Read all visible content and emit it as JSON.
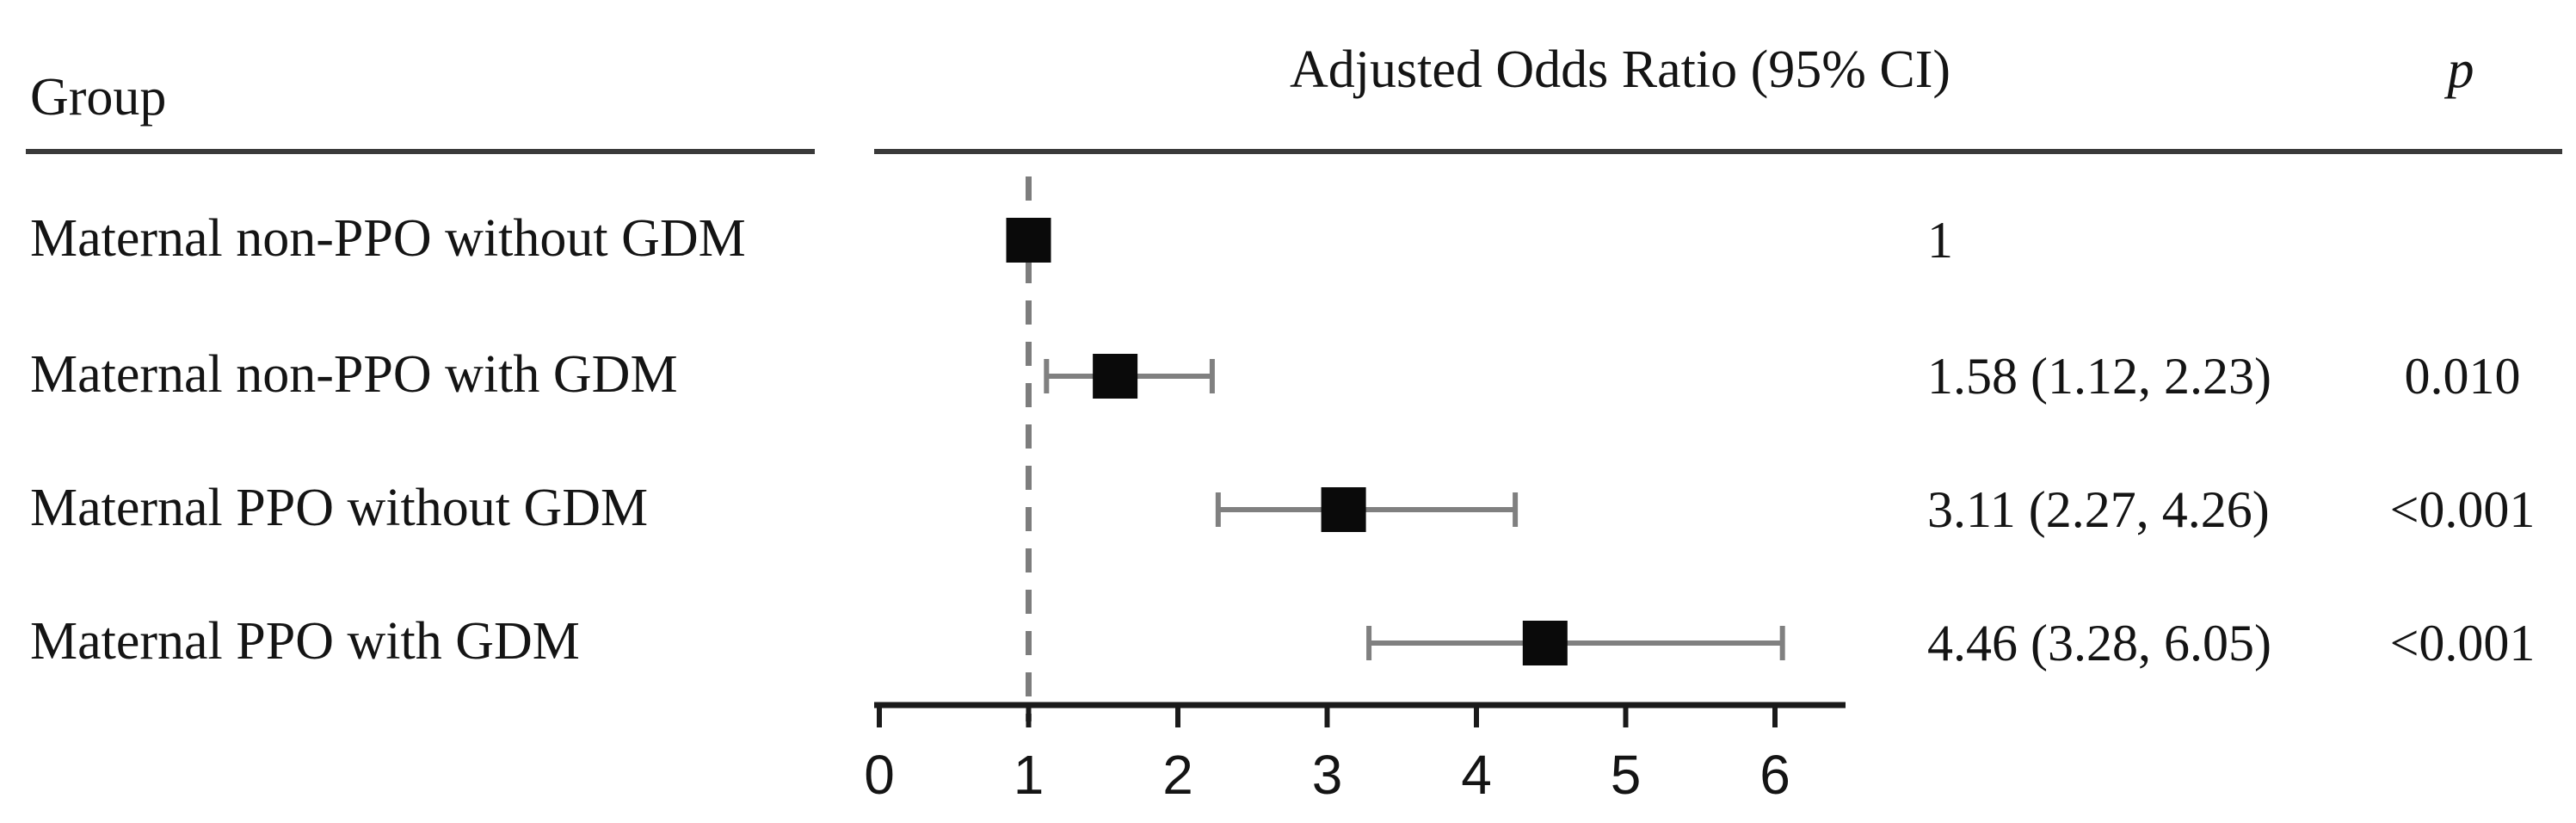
{
  "header": {
    "group_label": "Group",
    "aor_label": "Adjusted Odds Ratio (95% CI)",
    "p_label": "p"
  },
  "chart_data": {
    "type": "forest",
    "title": "Adjusted Odds Ratio (95% CI)",
    "x_ticks": [
      0,
      1,
      2,
      3,
      4,
      5,
      6
    ],
    "xlim": [
      0,
      6.5
    ],
    "reference_line_x": 1,
    "grid": false,
    "rows": [
      {
        "group": "Maternal non-PPO without GDM",
        "or": 1,
        "ci_low": null,
        "ci_high": null,
        "or_text": "1",
        "p_text": ""
      },
      {
        "group": "Maternal non-PPO with GDM",
        "or": 1.58,
        "ci_low": 1.12,
        "ci_high": 2.23,
        "or_text": "1.58 (1.12, 2.23)",
        "p_text": "0.010"
      },
      {
        "group": "Maternal PPO without GDM",
        "or": 3.11,
        "ci_low": 2.27,
        "ci_high": 4.26,
        "or_text": "3.11 (2.27, 4.26)",
        "p_text": "<0.001"
      },
      {
        "group": "Maternal PPO with GDM",
        "or": 4.46,
        "ci_low": 3.28,
        "ci_high": 6.05,
        "or_text": "4.46 (3.28, 6.05)",
        "p_text": "<0.001"
      }
    ],
    "colors": {
      "marker": "#0a0a0a",
      "whisker": "#808080",
      "reference_dash": "#7d7d7d",
      "axis": "#1a1a1a",
      "rule": "#3a3a3a",
      "text": "#141414"
    }
  }
}
